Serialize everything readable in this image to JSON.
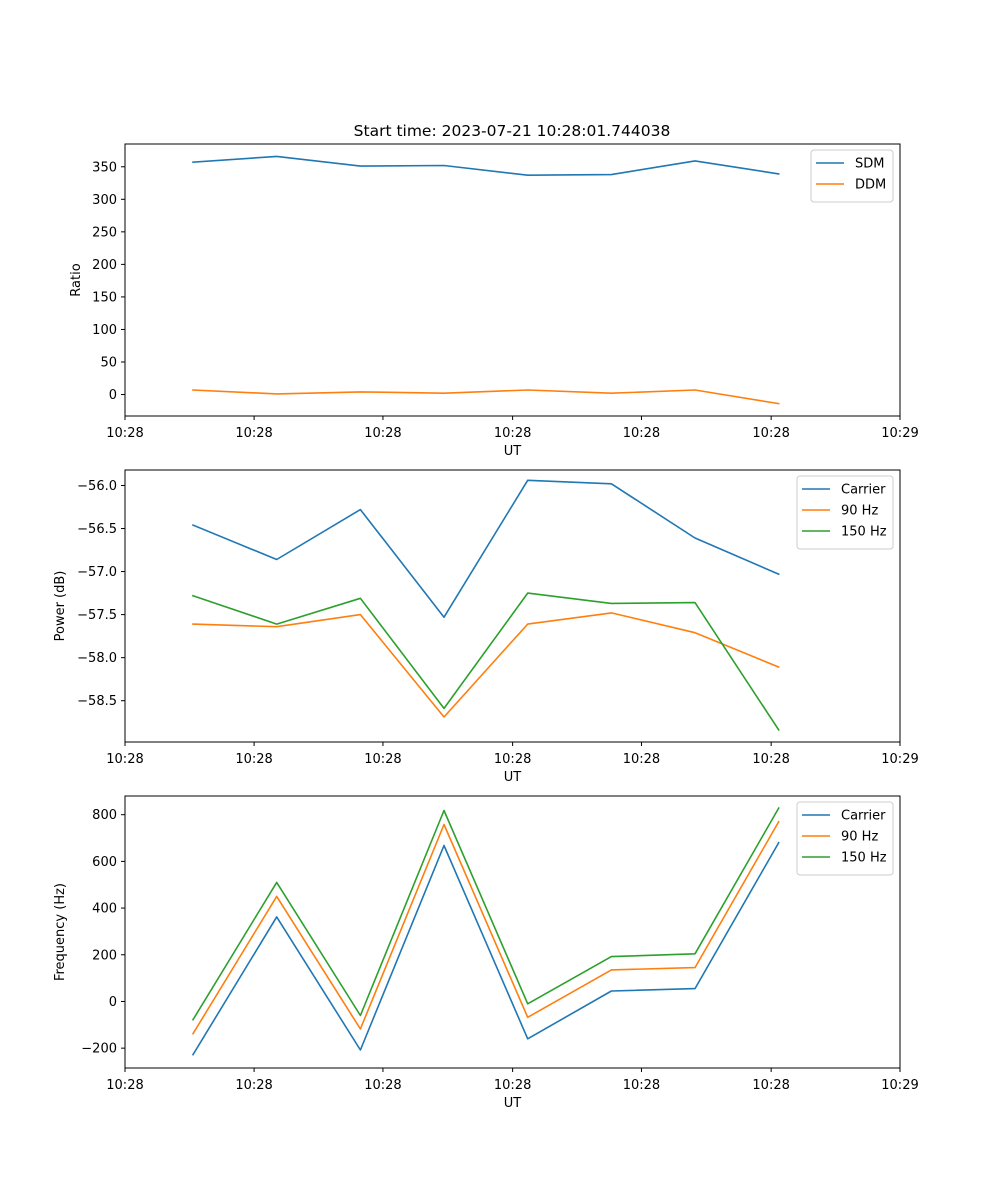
{
  "figure": {
    "title": "Start time: 2023-07-21 10:28:01.744038"
  },
  "colors": {
    "blue": "#1f77b4",
    "orange": "#ff7f0e",
    "green": "#2ca02c"
  },
  "chart_data": [
    {
      "type": "line",
      "title": "Start time: 2023-07-21 10:28:01.744038",
      "xlabel": "UT",
      "ylabel": "Ratio",
      "x": [
        1,
        2,
        3,
        4,
        5,
        6,
        7,
        8
      ],
      "xlim": [
        0.187,
        9.45
      ],
      "xticks": [
        0.187,
        1.73,
        3.27,
        4.82,
        6.36,
        7.91,
        9.45
      ],
      "xtick_labels": [
        "10:28",
        "10:28",
        "10:28",
        "10:28",
        "10:28",
        "10:28",
        "10:29"
      ],
      "ylim": [
        -33,
        385
      ],
      "yticks": [
        0,
        50,
        100,
        150,
        200,
        250,
        300,
        350
      ],
      "ytick_labels": [
        "0",
        "50",
        "100",
        "150",
        "200",
        "250",
        "300",
        "350"
      ],
      "legend_position": "top-right",
      "series": [
        {
          "name": "SDM",
          "color": "#1f77b4",
          "values": [
            357,
            366,
            351,
            352,
            337,
            338,
            359,
            339
          ]
        },
        {
          "name": "DDM",
          "color": "#ff7f0e",
          "values": [
            7,
            1,
            4,
            2,
            7,
            2,
            7,
            -14
          ]
        }
      ]
    },
    {
      "type": "line",
      "title": "",
      "xlabel": "UT",
      "ylabel": "Power (dB)",
      "x": [
        1,
        2,
        3,
        4,
        5,
        6,
        7,
        8
      ],
      "xlim": [
        0.187,
        9.45
      ],
      "xticks": [
        0.187,
        1.73,
        3.27,
        4.82,
        6.36,
        7.91,
        9.45
      ],
      "xtick_labels": [
        "10:28",
        "10:28",
        "10:28",
        "10:28",
        "10:28",
        "10:28",
        "10:29"
      ],
      "ylim": [
        -58.98,
        -55.82
      ],
      "yticks": [
        -58.5,
        -58.0,
        -57.5,
        -57.0,
        -56.5,
        -56.0
      ],
      "ytick_labels": [
        "−58.5",
        "−58.0",
        "−57.5",
        "−57.0",
        "−56.5",
        "−56.0"
      ],
      "legend_position": "top-right",
      "series": [
        {
          "name": "Carrier",
          "color": "#1f77b4",
          "values": [
            -56.46,
            -56.86,
            -56.28,
            -57.53,
            -55.94,
            -55.98,
            -56.61,
            -57.03
          ]
        },
        {
          "name": "90 Hz",
          "color": "#ff7f0e",
          "values": [
            -57.61,
            -57.64,
            -57.5,
            -58.69,
            -57.61,
            -57.48,
            -57.71,
            -58.11
          ]
        },
        {
          "name": "150 Hz",
          "color": "#2ca02c",
          "values": [
            -57.28,
            -57.61,
            -57.31,
            -58.59,
            -57.25,
            -57.37,
            -57.36,
            -58.84
          ]
        }
      ]
    },
    {
      "type": "line",
      "title": "",
      "xlabel": "UT",
      "ylabel": "Frequency (Hz)",
      "x": [
        1,
        2,
        3,
        4,
        5,
        6,
        7,
        8
      ],
      "xlim": [
        0.187,
        9.45
      ],
      "xticks": [
        0.187,
        1.73,
        3.27,
        4.82,
        6.36,
        7.91,
        9.45
      ],
      "xtick_labels": [
        "10:28",
        "10:28",
        "10:28",
        "10:28",
        "10:28",
        "10:28",
        "10:29"
      ],
      "ylim": [
        -285,
        880
      ],
      "yticks": [
        -200,
        0,
        200,
        400,
        600,
        800
      ],
      "ytick_labels": [
        "−200",
        "0",
        "200",
        "400",
        "600",
        "800"
      ],
      "legend_position": "top-right",
      "series": [
        {
          "name": "Carrier",
          "color": "#1f77b4",
          "values": [
            -228,
            362,
            -208,
            668,
            -160,
            45,
            55,
            680
          ]
        },
        {
          "name": "90 Hz",
          "color": "#ff7f0e",
          "values": [
            -138,
            450,
            -118,
            758,
            -68,
            135,
            145,
            770
          ]
        },
        {
          "name": "150 Hz",
          "color": "#2ca02c",
          "values": [
            -78,
            510,
            -60,
            818,
            -10,
            192,
            204,
            828
          ]
        }
      ]
    }
  ]
}
